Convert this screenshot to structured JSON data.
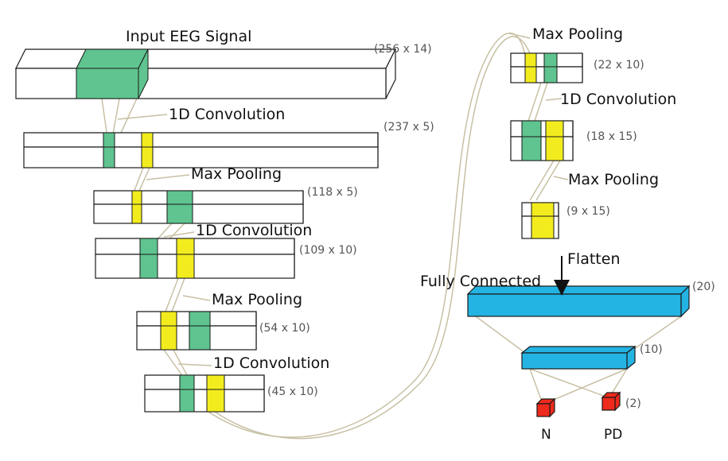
{
  "title": "Input EEG Signal",
  "colors": {
    "block_face": "#ffffff",
    "conv_kernel": "#5fc48f",
    "pool_window": "#f2ec1e",
    "dense": "#24b4e4",
    "output": "#ee2a1c",
    "connector": "#c8c0a4"
  },
  "stages": [
    {
      "dim": "(256 x 14)"
    },
    {
      "op": "1D Convolution",
      "dim": "(237 x 5)"
    },
    {
      "op": "Max Pooling",
      "dim": "(118 x 5)"
    },
    {
      "op": "1D Convolution",
      "dim": "(109 x 10)"
    },
    {
      "op": "Max Pooling",
      "dim": "(54 x 10)"
    },
    {
      "op": "1D Convolution",
      "dim": "(45 x 10)"
    },
    {
      "op": "Max Pooling",
      "dim": "(22 x 10)"
    },
    {
      "op": "1D Convolution",
      "dim": "(18 x 15)"
    },
    {
      "op": "Max Pooling",
      "dim": "(9 x 15)"
    }
  ],
  "flatten_label": "Flatten",
  "fully_connected_label": "Fully Connected",
  "dense_layers": [
    {
      "dim": "(20)"
    },
    {
      "dim": "(10)"
    }
  ],
  "output_layer": {
    "dim": "(2)",
    "classes": [
      "N",
      "PD"
    ]
  }
}
